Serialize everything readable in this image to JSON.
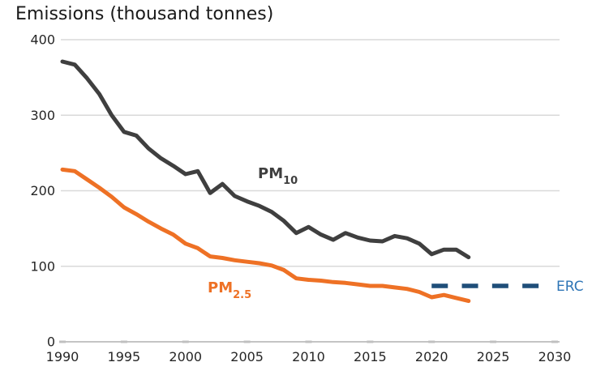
{
  "title": "Emissions (thousand tonnes)",
  "series_labels": {
    "pm10": {
      "base": "PM",
      "sub": "10"
    },
    "pm25": {
      "base": "PM",
      "sub": "2.5"
    }
  },
  "erc": {
    "label": "ERC",
    "value": 74,
    "year_start": 2020,
    "year_end": 2028.7
  },
  "colors": {
    "pm10": "#3f3f3f",
    "pm25": "#ee7125",
    "erc_dash": "#1F4E79",
    "erc_text": "#2E75B6",
    "gridline": "#d9d9d9",
    "axis_line": "#c4c4c4",
    "tick_mark": "#c0c0c0",
    "tick_text": "#262626",
    "title_text": "#1a1a1a"
  },
  "chart_data": {
    "type": "line",
    "title": "Emissions (thousand tonnes)",
    "xlabel": "",
    "ylabel": "Emissions (thousand tonnes)",
    "xlim": [
      1990,
      2030
    ],
    "ylim": [
      0,
      400
    ],
    "x_ticks": [
      1990,
      1995,
      2000,
      2005,
      2010,
      2015,
      2020,
      2025,
      2030
    ],
    "y_ticks": [
      0,
      100,
      200,
      300,
      400
    ],
    "grid": true,
    "legend_position": "inline-labels",
    "x": [
      1990,
      1991,
      1992,
      1993,
      1994,
      1995,
      1996,
      1997,
      1998,
      1999,
      2000,
      2001,
      2002,
      2003,
      2004,
      2005,
      2006,
      2007,
      2008,
      2009,
      2010,
      2011,
      2012,
      2013,
      2014,
      2015,
      2016,
      2017,
      2018,
      2019,
      2020,
      2021,
      2022,
      2023
    ],
    "series": [
      {
        "name": "PM10",
        "color": "#3f3f3f",
        "values": [
          371,
          367,
          349,
          328,
          300,
          278,
          273,
          256,
          243,
          233,
          222,
          226,
          197,
          209,
          193,
          186,
          180,
          172,
          160,
          144,
          152,
          142,
          135,
          144,
          138,
          134,
          133,
          140,
          137,
          130,
          116,
          122,
          122,
          112
        ]
      },
      {
        "name": "PM2.5",
        "color": "#ee7125",
        "values": [
          228,
          226,
          215,
          204,
          192,
          178,
          169,
          159,
          150,
          142,
          130,
          124,
          113,
          111,
          108,
          106,
          104,
          101,
          95,
          84,
          82,
          81,
          79,
          78,
          76,
          74,
          74,
          72,
          70,
          66,
          59,
          62,
          58,
          54
        ]
      }
    ],
    "reference_line": {
      "name": "ERC",
      "value": 74,
      "x_start": 2020,
      "x_end": 2028.7,
      "style": "dashed",
      "color": "#1F4E79"
    }
  }
}
